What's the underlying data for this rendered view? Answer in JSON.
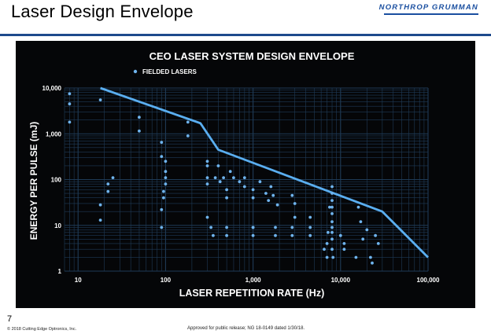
{
  "slide": {
    "title": "Laser Design Envelope",
    "logo_text": "NORTHROP GRUMMAN",
    "page_number": "7",
    "copyright": "© 2018 Cutting Edge Optronics, Inc.",
    "approval": "Approved for public release; NG 18-0149 dated 1/30/18."
  },
  "colors": {
    "background": "#050608",
    "grid": "#1f3b57",
    "envelope": "#5aaef0",
    "points": "#6fb4ee",
    "text": "#ffffff"
  },
  "chart_data": {
    "type": "scatter",
    "title": "CEO LASER SYSTEM DESIGN ENVELOPE",
    "xlabel": "LASER REPETITION RATE (Hz)",
    "ylabel": "ENERGY PER PULSE (mJ)",
    "xscale": "log",
    "yscale": "log",
    "xlim": [
      7,
      100000
    ],
    "ylim": [
      1,
      10000
    ],
    "x_ticks": [
      10,
      100,
      1000,
      10000,
      100000
    ],
    "x_tick_labels": [
      "10",
      "100",
      "1,000",
      "10,000",
      "100,000"
    ],
    "y_ticks": [
      1,
      10,
      100,
      1000,
      10000
    ],
    "y_tick_labels": [
      "1",
      "10",
      "100",
      "1,000",
      "10,000"
    ],
    "grid": true,
    "legend": {
      "position": "top-left",
      "entries": [
        "FIELDED LASERS"
      ]
    },
    "envelope": {
      "x": [
        18,
        250,
        400,
        30000,
        100000
      ],
      "y": [
        10000,
        1700,
        450,
        20,
        2
      ]
    },
    "series": [
      {
        "name": "FIELDED LASERS",
        "x": [
          8,
          8,
          8,
          18,
          50,
          50,
          90,
          90,
          100,
          100,
          180,
          180,
          18,
          18,
          25,
          22,
          22,
          100,
          100,
          95,
          95,
          90,
          90,
          300,
          300,
          300,
          300,
          300,
          330,
          350,
          370,
          400,
          420,
          460,
          500,
          500,
          550,
          600,
          700,
          800,
          800,
          1000,
          1000,
          1000,
          1200,
          1400,
          1500,
          1600,
          1700,
          1900,
          500,
          500,
          1000,
          1000,
          1800,
          1800,
          2800,
          2800,
          2800,
          4500,
          4500,
          4500,
          3000,
          3000,
          6500,
          7000,
          7000,
          7200,
          7500,
          8000,
          8000,
          8000,
          8000,
          8000,
          8000,
          8000,
          8000,
          8000,
          8000,
          8200,
          10000,
          11000,
          11000,
          15000,
          16000,
          17000,
          18000,
          20000,
          22000,
          23000,
          25000,
          27000
        ],
        "y": [
          7500,
          4500,
          1800,
          5500,
          2300,
          1150,
          650,
          320,
          250,
          150,
          1800,
          900,
          28,
          13,
          110,
          80,
          55,
          110,
          80,
          55,
          40,
          22,
          9,
          250,
          200,
          110,
          80,
          15,
          9,
          6,
          110,
          200,
          90,
          110,
          60,
          40,
          150,
          110,
          90,
          110,
          70,
          60,
          40,
          9,
          90,
          50,
          35,
          70,
          45,
          28,
          9,
          6,
          9,
          6,
          9,
          6,
          45,
          9,
          6,
          15,
          9,
          6,
          30,
          15,
          3,
          4,
          2,
          7,
          25,
          70,
          50,
          35,
          25,
          18,
          12,
          9,
          7,
          5,
          3,
          2,
          6,
          4,
          3,
          2,
          25,
          12,
          5,
          8,
          2,
          1.5,
          6,
          4
        ]
      }
    ]
  }
}
